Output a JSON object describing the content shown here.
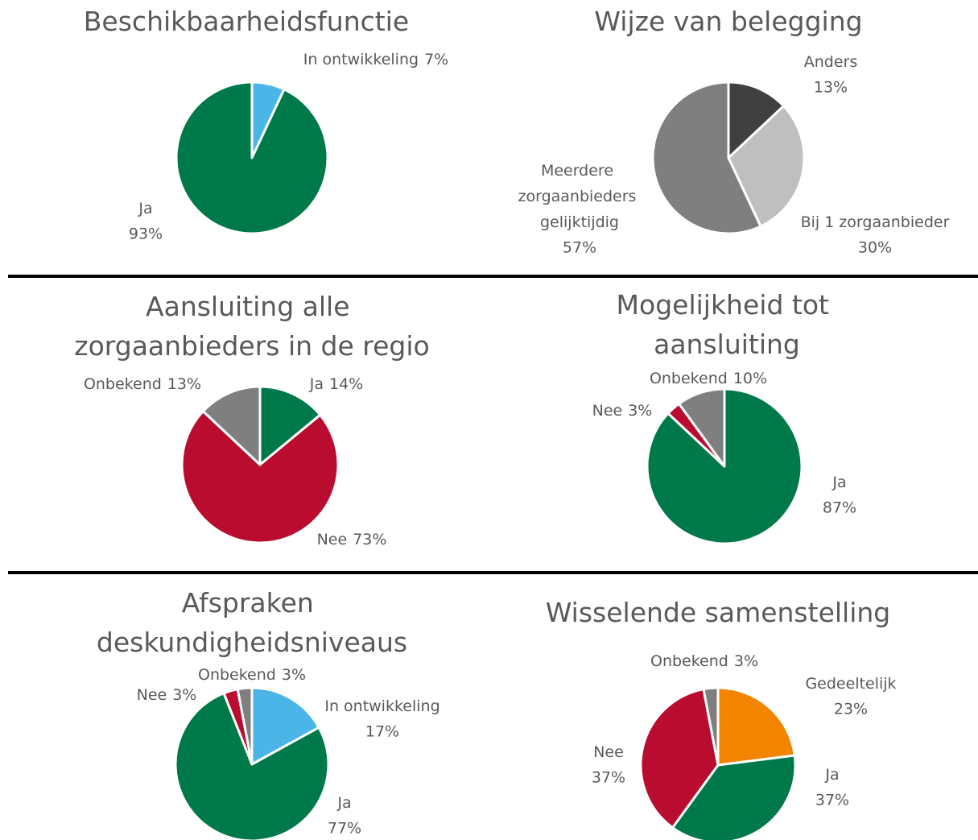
{
  "chart_data": [
    {
      "type": "pie",
      "title": "Beschikbaarheidsfunctie",
      "categories": [
        "In ontwikkeling",
        "Ja"
      ],
      "values": [
        7,
        93
      ],
      "value_labels": [
        "7%",
        "93%"
      ],
      "colors": [
        "#4ab5e6",
        "#00794a"
      ]
    },
    {
      "type": "pie",
      "title": "Wijze van belegging",
      "categories": [
        "Anders",
        "Bij 1 zorgaanbieder",
        "Meerdere zorgaanbieders gelijktijdig"
      ],
      "values": [
        13,
        30,
        57
      ],
      "value_labels": [
        "13%",
        "30%",
        "57%"
      ],
      "colors": [
        "#404040",
        "#bfbfbf",
        "#7f7f7f"
      ]
    },
    {
      "type": "pie",
      "title": "Aansluiting alle zorgaanbieders in de regio",
      "categories": [
        "Ja",
        "Nee",
        "Onbekend"
      ],
      "values": [
        14,
        73,
        13
      ],
      "value_labels": [
        "14%",
        "73%",
        "13%"
      ],
      "colors": [
        "#00794a",
        "#ba0c2f",
        "#7f7f7f"
      ]
    },
    {
      "type": "pie",
      "title": "Mogelijkheid tot aansluiting",
      "categories": [
        "Ja",
        "Nee",
        "Onbekend"
      ],
      "values": [
        87,
        3,
        10
      ],
      "value_labels": [
        "87%",
        "3%",
        "10%"
      ],
      "colors": [
        "#00794a",
        "#ba0c2f",
        "#7f7f7f"
      ]
    },
    {
      "type": "pie",
      "title": "Afspraken deskundigheidsniveaus",
      "categories": [
        "In ontwikkeling",
        "Ja",
        "Nee",
        "Onbekend"
      ],
      "values": [
        17,
        77,
        3,
        3
      ],
      "value_labels": [
        "17%",
        "77%",
        "3%",
        "3%"
      ],
      "colors": [
        "#4ab5e6",
        "#00794a",
        "#ba0c2f",
        "#7f7f7f"
      ]
    },
    {
      "type": "pie",
      "title": "Wisselende samenstelling",
      "categories": [
        "Gedeeltelijk",
        "Ja",
        "Nee",
        "Onbekend"
      ],
      "values": [
        23,
        37,
        37,
        3
      ],
      "value_labels": [
        "23%",
        "37%",
        "37%",
        "3%"
      ],
      "colors": [
        "#f28400",
        "#00794a",
        "#ba0c2f",
        "#7f7f7f"
      ]
    }
  ]
}
